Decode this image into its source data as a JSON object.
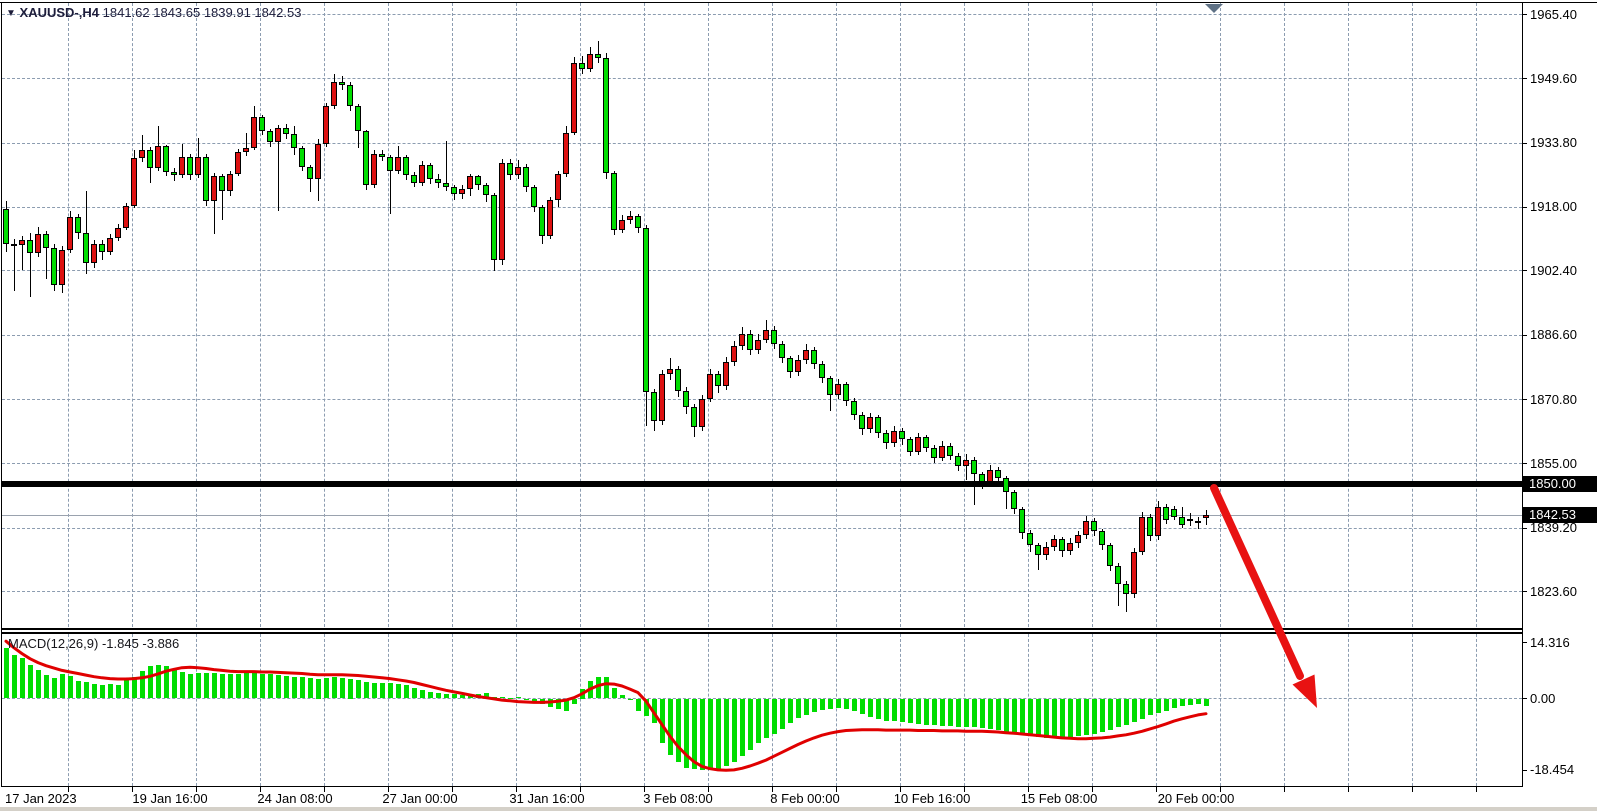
{
  "header": {
    "marker_icon": "▼",
    "symbol": "XAUUSD-,H4",
    "ohlc_text": "1841.62 1843.65 1839.91 1842.53"
  },
  "price_axis": {
    "labels": [
      "1965.40",
      "1949.60",
      "1933.80",
      "1918.00",
      "1902.40",
      "1886.60",
      "1870.80",
      "1855.00",
      "1839.20",
      "1823.60"
    ],
    "support_badge": "1850.00",
    "price_badge": "1842.53"
  },
  "time_axis": {
    "labels": [
      "17 Jan 2023",
      "19 Jan 16:00",
      "24 Jan 08:00",
      "27 Jan 00:00",
      "31 Jan 16:00",
      "3 Feb 08:00",
      "8 Feb 00:00",
      "10 Feb 16:00",
      "15 Feb 08:00",
      "20 Feb 00:00"
    ]
  },
  "macd_panel": {
    "label": "MACD(12,26,9)",
    "values_text": "-1.845 -3.886",
    "axis_labels": [
      "14.316",
      "0.00",
      "-18.454"
    ]
  },
  "colors": {
    "bull_candle": "#dd1111",
    "bear_candle": "#00dd00",
    "wick": "#000000",
    "macd_histogram": "#00dd00",
    "macd_signal": "#e00000",
    "arrow": "#e81212",
    "grid": "#8c9cb0",
    "support_line": "#000000",
    "badge_bg": "#000000",
    "badge_text": "#ffffff"
  },
  "chart_data": {
    "type": "candlestick",
    "title": "XAUUSD- H4 chart with MACD(12,26,9)",
    "symbol": "XAUUSD-",
    "timeframe": "H4",
    "color_convention": "red = bullish (up), green = bearish (down)",
    "last_bar": {
      "open": 1841.62,
      "high": 1843.65,
      "low": 1839.91,
      "close": 1842.53
    },
    "y_axis": {
      "ticks": [
        1965.4,
        1949.6,
        1933.8,
        1918.0,
        1902.4,
        1886.6,
        1870.8,
        1855.0,
        1839.2,
        1823.6
      ],
      "step": 15.8
    },
    "x_axis": {
      "ticks": [
        "17 Jan 2023",
        "19 Jan 16:00",
        "24 Jan 08:00",
        "27 Jan 00:00",
        "31 Jan 16:00",
        "3 Feb 08:00",
        "8 Feb 00:00",
        "10 Feb 16:00",
        "15 Feb 08:00",
        "20 Feb 00:00"
      ],
      "bars_per_tick": 16
    },
    "annotations": {
      "support_line_price": 1850.0,
      "current_price": 1842.53,
      "trend_arrow": {
        "description": "thick red arrow from the 1850.00 line pointing down-right below the last candles",
        "direction": "down-right"
      },
      "shift_marker": "small gray-blue down triangle at top right of price panel"
    },
    "candles_ohlc": [
      [
        1917.7,
        1919.5,
        1907.0,
        1909.1
      ],
      [
        1909.1,
        1910.2,
        1897.5,
        1908.8
      ],
      [
        1908.8,
        1911.0,
        1902.7,
        1910.1
      ],
      [
        1910.1,
        1911.6,
        1896.0,
        1906.7
      ],
      [
        1906.7,
        1913.3,
        1905.9,
        1911.4
      ],
      [
        1911.4,
        1912.2,
        1900.5,
        1908.0
      ],
      [
        1908.0,
        1908.9,
        1897.4,
        1899.0
      ],
      [
        1899.0,
        1908.6,
        1897.0,
        1907.6
      ],
      [
        1907.6,
        1917.0,
        1906.8,
        1915.7
      ],
      [
        1915.7,
        1916.5,
        1910.3,
        1911.6
      ],
      [
        1911.6,
        1922.0,
        1901.6,
        1904.3
      ],
      [
        1904.3,
        1910.0,
        1903.2,
        1909.0
      ],
      [
        1909.0,
        1910.1,
        1905.0,
        1907.0
      ],
      [
        1907.0,
        1911.5,
        1906.2,
        1910.5
      ],
      [
        1910.5,
        1914.0,
        1909.7,
        1913.0
      ],
      [
        1913.0,
        1919.2,
        1912.4,
        1918.4
      ],
      [
        1918.4,
        1932.1,
        1917.8,
        1930.1
      ],
      [
        1930.1,
        1935.8,
        1929.2,
        1932.1
      ],
      [
        1932.1,
        1932.8,
        1923.9,
        1927.6
      ],
      [
        1927.6,
        1937.9,
        1926.9,
        1933.0
      ],
      [
        1933.0,
        1933.4,
        1925.8,
        1926.8
      ],
      [
        1926.8,
        1927.8,
        1924.6,
        1925.9
      ],
      [
        1925.9,
        1933.5,
        1925.2,
        1930.5
      ],
      [
        1930.5,
        1931.1,
        1924.8,
        1926.0
      ],
      [
        1926.0,
        1935.0,
        1925.3,
        1930.5
      ],
      [
        1930.5,
        1931.2,
        1918.3,
        1919.5
      ],
      [
        1919.5,
        1926.4,
        1911.4,
        1925.6
      ],
      [
        1925.6,
        1926.3,
        1914.8,
        1922.0
      ],
      [
        1922.0,
        1927.0,
        1920.9,
        1926.3
      ],
      [
        1926.3,
        1932.4,
        1925.6,
        1931.5
      ],
      [
        1931.5,
        1936.2,
        1930.6,
        1932.7
      ],
      [
        1932.7,
        1942.8,
        1932.0,
        1940.3
      ],
      [
        1940.3,
        1940.8,
        1935.7,
        1936.7
      ],
      [
        1936.7,
        1937.3,
        1932.9,
        1934.0
      ],
      [
        1934.0,
        1938.2,
        1917.0,
        1937.4
      ],
      [
        1937.4,
        1938.5,
        1934.9,
        1936.0
      ],
      [
        1936.0,
        1937.9,
        1930.8,
        1932.5
      ],
      [
        1932.5,
        1933.1,
        1926.9,
        1928.0
      ],
      [
        1928.0,
        1928.5,
        1921.9,
        1925.0
      ],
      [
        1925.0,
        1934.8,
        1919.5,
        1933.5
      ],
      [
        1933.5,
        1943.6,
        1932.8,
        1942.8
      ],
      [
        1942.8,
        1950.7,
        1942.1,
        1948.7
      ],
      [
        1948.7,
        1950.2,
        1946.8,
        1948.0
      ],
      [
        1948.0,
        1948.9,
        1941.6,
        1942.8
      ],
      [
        1942.8,
        1943.3,
        1932.6,
        1936.7
      ],
      [
        1936.7,
        1937.1,
        1922.4,
        1923.6
      ],
      [
        1923.6,
        1932.0,
        1922.8,
        1931.2
      ],
      [
        1931.2,
        1932.2,
        1929.3,
        1930.5
      ],
      [
        1930.5,
        1930.8,
        1916.5,
        1927.0
      ],
      [
        1927.0,
        1933.2,
        1926.1,
        1930.5
      ],
      [
        1930.5,
        1930.9,
        1924.8,
        1926.0
      ],
      [
        1926.0,
        1926.7,
        1922.9,
        1924.0
      ],
      [
        1924.0,
        1929.3,
        1923.3,
        1928.5
      ],
      [
        1928.5,
        1929.0,
        1923.8,
        1925.0
      ],
      [
        1925.0,
        1926.1,
        1922.7,
        1924.0
      ],
      [
        1924.0,
        1934.4,
        1922.1,
        1923.0
      ],
      [
        1923.0,
        1923.6,
        1919.8,
        1921.2
      ],
      [
        1921.2,
        1923.4,
        1920.1,
        1922.5
      ],
      [
        1922.5,
        1926.3,
        1920.9,
        1925.6
      ],
      [
        1925.6,
        1926.0,
        1922.2,
        1923.4
      ],
      [
        1923.4,
        1923.9,
        1919.4,
        1921.0
      ],
      [
        1921.0,
        1921.6,
        1902.4,
        1905.0
      ],
      [
        1905.0,
        1929.8,
        1903.9,
        1929.0
      ],
      [
        1929.0,
        1930.0,
        1924.7,
        1926.0
      ],
      [
        1926.0,
        1929.6,
        1925.1,
        1928.0
      ],
      [
        1928.0,
        1928.6,
        1921.7,
        1923.0
      ],
      [
        1923.0,
        1923.5,
        1916.8,
        1918.0
      ],
      [
        1918.0,
        1918.6,
        1909.0,
        1911.0
      ],
      [
        1911.0,
        1920.5,
        1910.2,
        1919.9
      ],
      [
        1919.9,
        1927.0,
        1918.0,
        1926.1
      ],
      [
        1926.1,
        1938.0,
        1925.4,
        1936.4
      ],
      [
        1936.4,
        1955.0,
        1935.8,
        1953.4
      ],
      [
        1953.4,
        1955.2,
        1950.9,
        1952.0
      ],
      [
        1952.0,
        1957.5,
        1951.2,
        1955.6
      ],
      [
        1955.6,
        1958.8,
        1953.5,
        1954.6
      ],
      [
        1954.6,
        1956.0,
        1925.0,
        1926.4
      ],
      [
        1926.4,
        1927.0,
        1911.3,
        1912.5
      ],
      [
        1912.5,
        1916.2,
        1911.6,
        1915.0
      ],
      [
        1915.0,
        1917.1,
        1913.9,
        1915.8
      ],
      [
        1915.8,
        1916.4,
        1911.8,
        1913.0
      ],
      [
        1913.0,
        1913.6,
        1864.2,
        1872.7
      ],
      [
        1872.7,
        1873.4,
        1863.0,
        1865.5
      ],
      [
        1865.5,
        1878.0,
        1864.6,
        1877.0
      ],
      [
        1877.0,
        1880.9,
        1875.6,
        1878.2
      ],
      [
        1878.2,
        1879.0,
        1871.5,
        1873.0
      ],
      [
        1873.0,
        1873.8,
        1867.3,
        1869.0
      ],
      [
        1869.0,
        1869.6,
        1861.5,
        1864.0
      ],
      [
        1864.0,
        1872.0,
        1863.0,
        1871.0
      ],
      [
        1871.0,
        1878.3,
        1870.1,
        1877.0
      ],
      [
        1877.0,
        1877.9,
        1872.4,
        1874.0
      ],
      [
        1874.0,
        1881.2,
        1873.2,
        1880.0
      ],
      [
        1880.0,
        1885.3,
        1879.1,
        1884.0
      ],
      [
        1884.0,
        1888.6,
        1883.0,
        1887.0
      ],
      [
        1887.0,
        1887.8,
        1881.7,
        1883.0
      ],
      [
        1883.0,
        1886.9,
        1882.1,
        1885.5
      ],
      [
        1885.5,
        1890.4,
        1884.6,
        1888.0
      ],
      [
        1888.0,
        1888.9,
        1883.2,
        1884.5
      ],
      [
        1884.5,
        1885.2,
        1879.8,
        1881.0
      ],
      [
        1881.0,
        1881.6,
        1876.2,
        1877.5
      ],
      [
        1877.5,
        1881.8,
        1876.6,
        1880.5
      ],
      [
        1880.5,
        1884.4,
        1879.5,
        1883.0
      ],
      [
        1883.0,
        1883.7,
        1878.3,
        1879.5
      ],
      [
        1879.5,
        1880.2,
        1874.9,
        1876.0
      ],
      [
        1876.0,
        1876.6,
        1868.0,
        1872.0
      ],
      [
        1872.0,
        1875.8,
        1871.0,
        1874.5
      ],
      [
        1874.5,
        1875.1,
        1869.2,
        1870.5
      ],
      [
        1870.5,
        1871.2,
        1865.8,
        1867.0
      ],
      [
        1867.0,
        1867.7,
        1862.1,
        1863.5
      ],
      [
        1863.5,
        1867.6,
        1862.5,
        1866.5
      ],
      [
        1866.5,
        1867.1,
        1861.3,
        1862.5
      ],
      [
        1862.5,
        1863.2,
        1858.7,
        1860.0
      ],
      [
        1860.0,
        1864.2,
        1859.1,
        1863.0
      ],
      [
        1863.0,
        1863.8,
        1859.6,
        1861.0
      ],
      [
        1861.0,
        1861.6,
        1856.8,
        1858.0
      ],
      [
        1858.0,
        1862.6,
        1857.2,
        1861.5
      ],
      [
        1861.5,
        1862.1,
        1857.8,
        1859.0
      ],
      [
        1859.0,
        1859.7,
        1855.3,
        1856.5
      ],
      [
        1856.5,
        1860.6,
        1855.7,
        1859.5
      ],
      [
        1859.5,
        1860.1,
        1855.9,
        1857.0
      ],
      [
        1857.0,
        1857.6,
        1853.2,
        1854.5
      ],
      [
        1854.5,
        1857.3,
        1851.0,
        1856.0
      ],
      [
        1856.0,
        1856.6,
        1845.0,
        1852.5
      ],
      [
        1852.5,
        1853.1,
        1848.9,
        1850.5
      ],
      [
        1850.5,
        1854.6,
        1849.7,
        1853.5
      ],
      [
        1853.5,
        1854.1,
        1850.2,
        1851.5
      ],
      [
        1851.5,
        1852.1,
        1844.0,
        1848.0
      ],
      [
        1848.0,
        1848.6,
        1842.6,
        1844.0
      ],
      [
        1844.0,
        1844.5,
        1836.6,
        1838.0
      ],
      [
        1838.0,
        1838.7,
        1833.4,
        1835.0
      ],
      [
        1835.0,
        1835.6,
        1829.0,
        1832.5
      ],
      [
        1832.5,
        1835.7,
        1831.4,
        1834.5
      ],
      [
        1834.5,
        1837.6,
        1833.5,
        1836.5
      ],
      [
        1836.5,
        1837.1,
        1832.2,
        1833.5
      ],
      [
        1833.5,
        1836.7,
        1832.5,
        1835.5
      ],
      [
        1835.5,
        1838.6,
        1834.4,
        1837.5
      ],
      [
        1837.5,
        1842.2,
        1836.6,
        1841.0
      ],
      [
        1841.0,
        1841.7,
        1837.2,
        1838.5
      ],
      [
        1838.5,
        1839.1,
        1833.8,
        1835.0
      ],
      [
        1835.0,
        1835.6,
        1828.6,
        1830.0
      ],
      [
        1830.0,
        1830.6,
        1820.0,
        1825.5
      ],
      [
        1825.5,
        1826.2,
        1818.5,
        1823.0
      ],
      [
        1823.0,
        1834.3,
        1822.0,
        1833.4
      ],
      [
        1833.4,
        1843.1,
        1832.5,
        1842.0
      ],
      [
        1842.0,
        1842.6,
        1836.0,
        1837.2
      ],
      [
        1837.2,
        1845.9,
        1836.4,
        1844.5
      ],
      [
        1844.5,
        1845.2,
        1840.1,
        1841.3
      ],
      [
        1844.0,
        1844.6,
        1841.2,
        1842.0
      ],
      [
        1842.0,
        1844.5,
        1839.3,
        1840.0
      ],
      [
        1841.5,
        1842.8,
        1839.8,
        1841.3
      ],
      [
        1840.9,
        1842.0,
        1838.9,
        1840.8
      ],
      [
        1841.62,
        1843.65,
        1839.91,
        1842.53
      ]
    ],
    "macd": {
      "params": "12,26,9",
      "last_main": -1.845,
      "last_signal": -3.886,
      "scale_ticks": [
        14.316,
        0.0,
        -18.454
      ],
      "main": [
        13.0,
        11.1,
        10.4,
        8.7,
        7.2,
        6.1,
        5.3,
        6.3,
        5.7,
        4.6,
        4.3,
        3.8,
        3.4,
        3.6,
        3.4,
        4.9,
        5.5,
        7.0,
        8.3,
        8.7,
        8.3,
        7.4,
        6.8,
        6.3,
        6.6,
        6.6,
        6.5,
        6.4,
        6.3,
        6.4,
        6.5,
        6.6,
        6.4,
        6.2,
        6.0,
        5.8,
        5.6,
        5.4,
        5.2,
        5.0,
        5.2,
        5.4,
        5.2,
        5.0,
        4.7,
        4.3,
        4.1,
        4.0,
        3.9,
        3.8,
        3.4,
        2.6,
        2.1,
        1.6,
        1.5,
        1.2,
        1.1,
        1.0,
        1.0,
        1.1,
        1.4,
        0.5,
        0.3,
        0.2,
        0.3,
        -0.2,
        -0.8,
        -1.5,
        -2.2,
        -2.8,
        -3.2,
        -1.5,
        2.5,
        4.5,
        5.5,
        5.4,
        2.6,
        1.0,
        -0.3,
        -3.1,
        -4.5,
        -6.4,
        -11.4,
        -14.6,
        -16.4,
        -17.7,
        -18.2,
        -18.454,
        -18.3,
        -18.0,
        -17.3,
        -16.2,
        -14.8,
        -13.2,
        -11.5,
        -10.2,
        -9.0,
        -7.7,
        -6.2,
        -5.1,
        -4.3,
        -3.4,
        -3.0,
        -2.7,
        -2.4,
        -2.7,
        -3.1,
        -4.0,
        -4.8,
        -5.2,
        -5.7,
        -5.8,
        -6.1,
        -6.3,
        -6.5,
        -6.7,
        -6.9,
        -7.0,
        -7.1,
        -7.2,
        -7.3,
        -7.4,
        -7.5,
        -7.7,
        -8.1,
        -8.5,
        -9.0,
        -9.3,
        -9.6,
        -9.8,
        -10.0,
        -10.1,
        -10.0,
        -9.9,
        -9.7,
        -9.4,
        -9.0,
        -8.6,
        -8.0,
        -7.3,
        -6.7,
        -6.1,
        -5.2,
        -4.3,
        -3.8,
        -3.1,
        -2.4,
        -2.0,
        -1.6,
        -1.4,
        -1.845
      ],
      "signal": [
        14.7,
        13.0,
        11.5,
        10.2,
        9.2,
        8.4,
        7.8,
        7.2,
        6.8,
        6.4,
        6.0,
        5.6,
        5.3,
        5.1,
        5.0,
        5.0,
        5.1,
        5.3,
        5.7,
        6.3,
        7.0,
        7.5,
        7.9,
        8.0,
        7.9,
        7.7,
        7.4,
        7.2,
        7.0,
        6.9,
        6.9,
        6.9,
        6.8,
        6.8,
        6.7,
        6.6,
        6.5,
        6.4,
        6.2,
        6.1,
        6.1,
        6.1,
        6.1,
        6.0,
        5.9,
        5.7,
        5.5,
        5.3,
        5.1,
        4.8,
        4.5,
        4.1,
        3.6,
        3.1,
        2.6,
        2.1,
        1.7,
        1.3,
        0.9,
        0.5,
        0.2,
        -0.1,
        -0.4,
        -0.6,
        -0.8,
        -0.9,
        -1.0,
        -1.0,
        -0.9,
        -0.7,
        -0.4,
        0.2,
        1.2,
        2.4,
        3.3,
        3.8,
        3.7,
        3.2,
        2.4,
        1.5,
        -0.7,
        -3.7,
        -6.7,
        -9.7,
        -12.3,
        -14.4,
        -16.2,
        -17.4,
        -18.0,
        -18.3,
        -18.4,
        -18.3,
        -17.9,
        -17.3,
        -16.6,
        -15.8,
        -14.8,
        -13.8,
        -12.8,
        -11.8,
        -10.9,
        -10.1,
        -9.4,
        -8.9,
        -8.5,
        -8.2,
        -8.1,
        -8.0,
        -8.0,
        -8.0,
        -8.1,
        -8.1,
        -8.1,
        -8.1,
        -8.2,
        -8.2,
        -8.2,
        -8.3,
        -8.3,
        -8.3,
        -8.4,
        -8.4,
        -8.4,
        -8.5,
        -8.6,
        -8.8,
        -8.9,
        -9.1,
        -9.3,
        -9.5,
        -9.7,
        -9.9,
        -10.1,
        -10.2,
        -10.3,
        -10.3,
        -10.2,
        -10.1,
        -9.9,
        -9.6,
        -9.3,
        -8.9,
        -8.4,
        -7.8,
        -7.2,
        -6.5,
        -5.8,
        -5.2,
        -4.7,
        -4.2,
        -3.886
      ]
    }
  }
}
